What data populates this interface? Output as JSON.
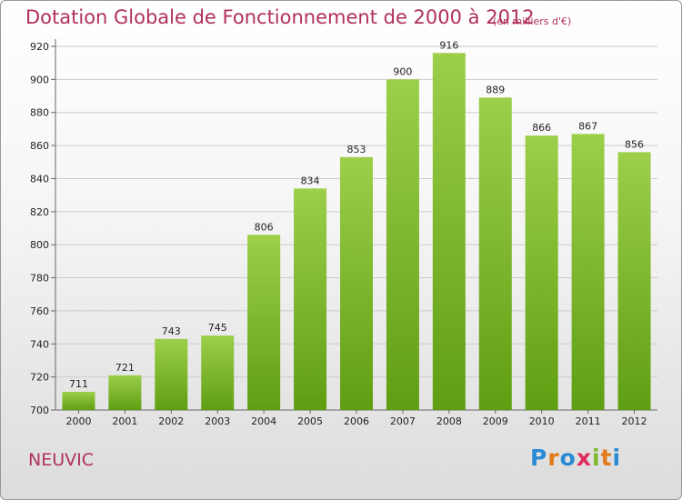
{
  "title": "Dotation Globale de Fonctionnement de 2000 à 2012",
  "unit_note": "(en milliers d'€)",
  "commune": "NEUVIC",
  "logo": {
    "text": "Proxiti",
    "letters": [
      "P",
      "r",
      "o",
      "x",
      "i",
      "t",
      "i"
    ],
    "colors": [
      "#2a8ad4",
      "#e07a1a",
      "#2a8ad4",
      "#e02a5a",
      "#7ab82a",
      "#e07a1a",
      "#2a8ad4"
    ]
  },
  "colors": {
    "bar_top": "#9ccf4a",
    "bar_bottom": "#5f9e12",
    "grid": "#cccccc"
  },
  "chart_data": {
    "type": "bar",
    "title": "Dotation Globale de Fonctionnement de 2000 à 2012",
    "xlabel": "",
    "ylabel": "",
    "categories": [
      "2000",
      "2001",
      "2002",
      "2003",
      "2004",
      "2005",
      "2006",
      "2007",
      "2008",
      "2009",
      "2010",
      "2011",
      "2012"
    ],
    "values": [
      711,
      721,
      743,
      745,
      806,
      834,
      853,
      900,
      916,
      889,
      866,
      867,
      856
    ],
    "ylim": [
      700,
      920
    ],
    "yticks": [
      700,
      720,
      740,
      760,
      780,
      800,
      820,
      840,
      860,
      880,
      900,
      920
    ],
    "grid": true
  }
}
